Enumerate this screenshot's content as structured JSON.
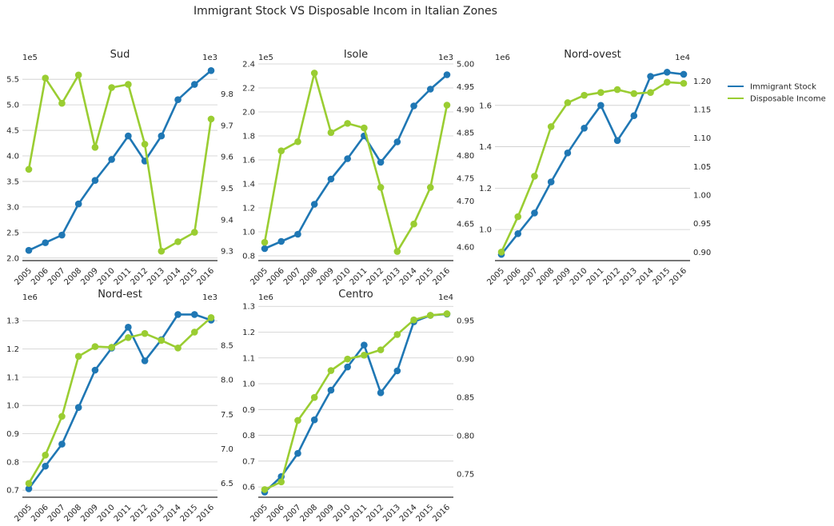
{
  "figure": {
    "title": "Immigrant Stock VS Disposable Incom in Italian Zones"
  },
  "legend": [
    {
      "name": "Immigrant Stock",
      "color": "#1f77b4"
    },
    {
      "name": "Disposable Income",
      "color": "#9acd32"
    }
  ],
  "chart_data": [
    {
      "type": "line",
      "title": "Sud",
      "x": [
        2005,
        2006,
        2007,
        2008,
        2009,
        2010,
        2011,
        2012,
        2013,
        2014,
        2015,
        2016
      ],
      "left_axis": {
        "multiplier": "1e5",
        "ylim": [
          1.95,
          5.8
        ],
        "ticks": [
          2.0,
          2.5,
          3.0,
          3.5,
          4.0,
          4.5,
          5.0,
          5.5
        ],
        "labels": [
          "2.0",
          "2.5",
          "3.0",
          "3.5",
          "4.0",
          "4.5",
          "5.0",
          "5.5"
        ]
      },
      "right_axis": {
        "multiplier": "1e3",
        "ylim": [
          9.27,
          9.895
        ],
        "ticks": [
          9.3,
          9.4,
          9.5,
          9.6,
          9.7,
          9.8
        ],
        "labels": [
          "9.3",
          "9.4",
          "9.5",
          "9.6",
          "9.7",
          "9.8"
        ]
      },
      "series": [
        {
          "name": "Immigrant Stock",
          "axis": "left",
          "values": [
            2.15,
            2.3,
            2.45,
            3.06,
            3.52,
            3.93,
            4.39,
            3.9,
            4.39,
            5.1,
            5.4,
            5.67
          ]
        },
        {
          "name": "Disposable Income",
          "axis": "right",
          "values": [
            9.56,
            9.85,
            9.77,
            9.86,
            9.63,
            9.82,
            9.83,
            9.64,
            9.3,
            9.33,
            9.36,
            9.72
          ]
        }
      ]
    },
    {
      "type": "line",
      "title": "Isole",
      "x": [
        2005,
        2006,
        2007,
        2008,
        2009,
        2010,
        2011,
        2012,
        2013,
        2014,
        2015,
        2016
      ],
      "left_axis": {
        "multiplier": "1e5",
        "ylim": [
          0.76,
          2.4
        ],
        "ticks": [
          0.8,
          1.0,
          1.2,
          1.4,
          1.6,
          1.8,
          2.0,
          2.2,
          2.4
        ],
        "labels": [
          "0.8",
          "1.0",
          "1.2",
          "1.4",
          "1.6",
          "1.8",
          "2.0",
          "2.2",
          "2.4"
        ]
      },
      "right_axis": {
        "multiplier": "1e3",
        "ylim": [
          4.57,
          5.0
        ],
        "ticks": [
          4.6,
          4.65,
          4.7,
          4.75,
          4.8,
          4.85,
          4.9,
          4.95,
          5.0
        ],
        "labels": [
          "4.60",
          "4.65",
          "4.70",
          "4.75",
          "4.80",
          "4.85",
          "4.90",
          "4.95",
          "5.00"
        ]
      },
      "series": [
        {
          "name": "Immigrant Stock",
          "axis": "left",
          "values": [
            0.86,
            0.92,
            0.98,
            1.23,
            1.44,
            1.61,
            1.8,
            1.58,
            1.75,
            2.05,
            2.19,
            2.31
          ]
        },
        {
          "name": "Disposable Income",
          "axis": "right",
          "values": [
            4.61,
            4.81,
            4.83,
            4.98,
            4.85,
            4.87,
            4.86,
            4.73,
            4.59,
            4.65,
            4.73,
            4.91
          ]
        }
      ]
    },
    {
      "type": "line",
      "title": "Nord-ovest",
      "x": [
        2005,
        2006,
        2007,
        2008,
        2009,
        2010,
        2011,
        2012,
        2013,
        2014,
        2015,
        2016
      ],
      "left_axis": {
        "multiplier": "1e6",
        "ylim": [
          0.85,
          1.8
        ],
        "ticks": [
          1.0,
          1.2,
          1.4,
          1.6
        ],
        "labels": [
          "1.0",
          "1.2",
          "1.4",
          "1.6"
        ]
      },
      "right_axis": {
        "multiplier": "1e4",
        "ylim": [
          0.885,
          1.23
        ],
        "ticks": [
          0.9,
          0.95,
          1.0,
          1.05,
          1.1,
          1.15,
          1.2
        ],
        "labels": [
          "0.90",
          "0.95",
          "1.00",
          "1.05",
          "1.10",
          "1.15",
          "1.20"
        ]
      },
      "series": [
        {
          "name": "Immigrant Stock",
          "axis": "left",
          "values": [
            0.88,
            0.98,
            1.08,
            1.23,
            1.37,
            1.49,
            1.6,
            1.43,
            1.55,
            1.74,
            1.76,
            1.75
          ]
        },
        {
          "name": "Disposable Income",
          "axis": "right",
          "values": [
            0.9,
            0.962,
            1.033,
            1.12,
            1.162,
            1.175,
            1.18,
            1.185,
            1.178,
            1.18,
            1.198,
            1.196
          ]
        }
      ]
    },
    {
      "type": "line",
      "title": "Nord-est",
      "x": [
        2005,
        2006,
        2007,
        2008,
        2009,
        2010,
        2011,
        2012,
        2013,
        2014,
        2015,
        2016
      ],
      "left_axis": {
        "multiplier": "1e6",
        "ylim": [
          0.675,
          1.36
        ],
        "ticks": [
          0.7,
          0.8,
          0.9,
          1.0,
          1.1,
          1.2,
          1.3
        ],
        "labels": [
          "0.7",
          "0.8",
          "0.9",
          "1.0",
          "1.1",
          "1.2",
          "1.3"
        ]
      },
      "right_axis": {
        "multiplier": "1e3",
        "ylim": [
          6.3,
          9.1
        ],
        "ticks": [
          6.5,
          7.0,
          7.5,
          8.0,
          8.5
        ],
        "labels": [
          "6.5",
          "7.0",
          "7.5",
          "8.0",
          "8.5"
        ]
      },
      "series": [
        {
          "name": "Immigrant Stock",
          "axis": "left",
          "values": [
            0.705,
            0.785,
            0.863,
            0.993,
            1.125,
            1.203,
            1.277,
            1.158,
            1.233,
            1.322,
            1.322,
            1.302
          ]
        },
        {
          "name": "Disposable Income",
          "axis": "right",
          "values": [
            6.5,
            6.91,
            7.47,
            8.34,
            8.48,
            8.47,
            8.61,
            8.67,
            8.57,
            8.46,
            8.69,
            8.9
          ]
        }
      ]
    },
    {
      "type": "line",
      "title": "Centro",
      "x": [
        2005,
        2006,
        2007,
        2008,
        2009,
        2010,
        2011,
        2012,
        2013,
        2014,
        2015,
        2016
      ],
      "left_axis": {
        "multiplier": "1e6",
        "ylim": [
          0.56,
          1.31
        ],
        "ticks": [
          0.6,
          0.7,
          0.8,
          0.9,
          1.0,
          1.1,
          1.2,
          1.3
        ],
        "labels": [
          "0.6",
          "0.7",
          "0.8",
          "0.9",
          "1.0",
          "1.1",
          "1.2",
          "1.3"
        ]
      },
      "right_axis": {
        "multiplier": "1e4",
        "ylim": [
          0.72,
          0.972
        ],
        "ticks": [
          0.75,
          0.8,
          0.85,
          0.9,
          0.95
        ],
        "labels": [
          "0.75",
          "0.80",
          "0.85",
          "0.90",
          "0.95"
        ]
      },
      "series": [
        {
          "name": "Immigrant Stock",
          "axis": "left",
          "values": [
            0.58,
            0.64,
            0.73,
            0.86,
            0.975,
            1.065,
            1.15,
            0.965,
            1.05,
            1.24,
            1.265,
            1.27
          ]
        },
        {
          "name": "Disposable Income",
          "axis": "right",
          "values": [
            0.73,
            0.74,
            0.82,
            0.85,
            0.885,
            0.9,
            0.905,
            0.912,
            0.932,
            0.951,
            0.957,
            0.959
          ]
        }
      ]
    }
  ]
}
